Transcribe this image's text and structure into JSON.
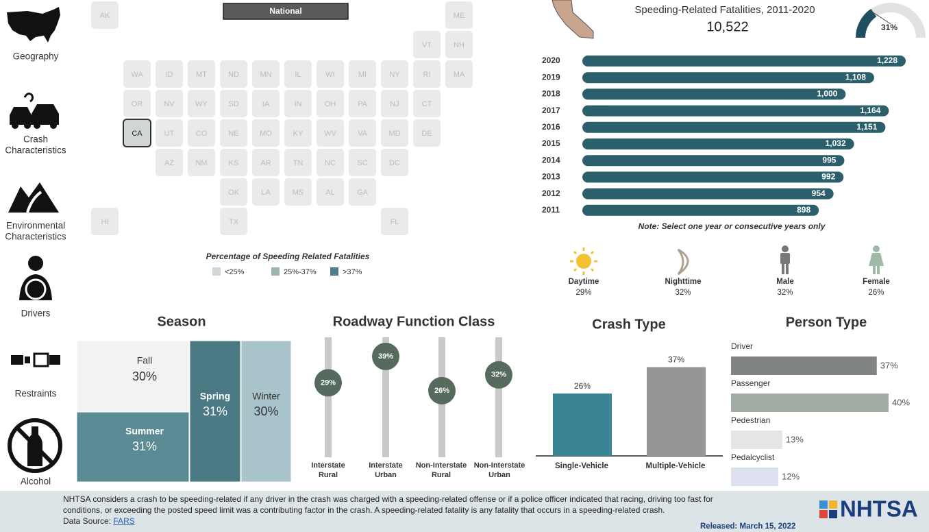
{
  "sidebar": [
    [
      "Geography"
    ],
    [
      "Crash",
      "Characteristics"
    ],
    [
      "Environmental",
      "Characteristics"
    ],
    [
      "Drivers"
    ],
    [
      "Restraints"
    ],
    [
      "Alcohol"
    ]
  ],
  "map": {
    "button": "National",
    "rows": [
      [
        "AK",
        "ME"
      ],
      [
        "VT",
        "NH"
      ],
      [
        "WA",
        "ID",
        "MT",
        "ND",
        "MN",
        "IL",
        "WI",
        "MI",
        "NY",
        "RI",
        "MA"
      ],
      [
        "OR",
        "NV",
        "WY",
        "SD",
        "IA",
        "IN",
        "OH",
        "PA",
        "NJ",
        "CT"
      ],
      [
        "CA",
        "UT",
        "CO",
        "NE",
        "MO",
        "KY",
        "WV",
        "VA",
        "MD",
        "DE"
      ],
      [
        "AZ",
        "NM",
        "KS",
        "AR",
        "TN",
        "NC",
        "SC",
        "DC"
      ],
      [
        "OK",
        "LA",
        "MS",
        "AL",
        "GA"
      ],
      [
        "HI",
        "TX",
        "FL"
      ]
    ],
    "selected": "CA",
    "legend_title": "Percentage of Speeding Related Fatalities",
    "legend": [
      "<25%",
      "25%-37%",
      ">37%"
    ],
    "legend_colors": [
      "#cfd6d4",
      "#9db5ab",
      "#4e7d8a"
    ]
  },
  "summary": {
    "title": "Speeding-Related Fatalities, 2011-2020",
    "total": "10,522",
    "gauge": 31,
    "gauge_label": "31%"
  },
  "indicators": [
    {
      "label": "Daytime",
      "value": "29%"
    },
    {
      "label": "Nighttime",
      "value": "32%"
    },
    {
      "label": "Male",
      "value": "32%"
    },
    {
      "label": "Female",
      "value": "26%"
    }
  ],
  "chart_data": [
    {
      "type": "hbar",
      "categories": [
        "2020",
        "2019",
        "2018",
        "2017",
        "2016",
        "2015",
        "2014",
        "2013",
        "2012",
        "2011"
      ],
      "values": [
        1228,
        1108,
        1000,
        1164,
        1151,
        1032,
        995,
        992,
        954,
        898
      ],
      "value_labels": [
        "1,228",
        "1,108",
        "1,000",
        "1,164",
        "1,151",
        "1,032",
        "995",
        "992",
        "954",
        "898"
      ],
      "color": "#2b5f6b",
      "note": "Note: Select one year or consecutive years only"
    },
    {
      "type": "treemap",
      "title": "Season",
      "categories": [
        "Fall",
        "Summer",
        "Spring",
        "Winter"
      ],
      "values": [
        30,
        31,
        31,
        30
      ],
      "value_labels": [
        "30%",
        "31%",
        "31%",
        "30%"
      ],
      "colors": [
        "#f2f2f2",
        "#5a8b94",
        "#4a7983",
        "#a9c3ca"
      ]
    },
    {
      "type": "lollipop",
      "title": "Roadway Function Class",
      "categories": [
        [
          "Interstate",
          "Rural"
        ],
        [
          "Interstate",
          "Urban"
        ],
        [
          "Non-Interstate",
          "Rural"
        ],
        [
          "Non-Interstate",
          "Urban"
        ]
      ],
      "values": [
        29,
        39,
        26,
        32
      ],
      "value_labels": [
        "29%",
        "39%",
        "26%",
        "32%"
      ],
      "color": "#566b5e"
    },
    {
      "type": "bar",
      "title": "Crash Type",
      "categories": [
        "Single-Vehicle",
        "Multiple-Vehicle"
      ],
      "values": [
        26,
        37
      ],
      "value_labels": [
        "26%",
        "37%"
      ],
      "colors": [
        "#3a8595",
        "#969696"
      ]
    },
    {
      "type": "personbar",
      "title": "Person Type",
      "categories": [
        "Driver",
        "Passenger",
        "Pedestrian",
        "Pedalcyclist"
      ],
      "values": [
        37,
        40,
        13,
        12
      ],
      "value_labels": [
        "37%",
        "40%",
        "13%",
        "12%"
      ],
      "colors": [
        "#7f8383",
        "#a1aca4",
        "#e4e6e4",
        "#dde0ee"
      ]
    }
  ],
  "footer": {
    "text": [
      "NHTSA considers a crash to be speeding-related if any driver in the crash was charged with a speeding-related offense or if a police officer indicated that racing, driving too fast for",
      "conditions, or exceeding the posted speed limit was a contributing factor in the crash. A speeding-related fatality is any fatality that occurs in a speeding-related crash."
    ],
    "source_label": "Data Source:",
    "source_link": "FARS",
    "released": "Released: March 15, 2022",
    "logo": "NHTSA"
  }
}
